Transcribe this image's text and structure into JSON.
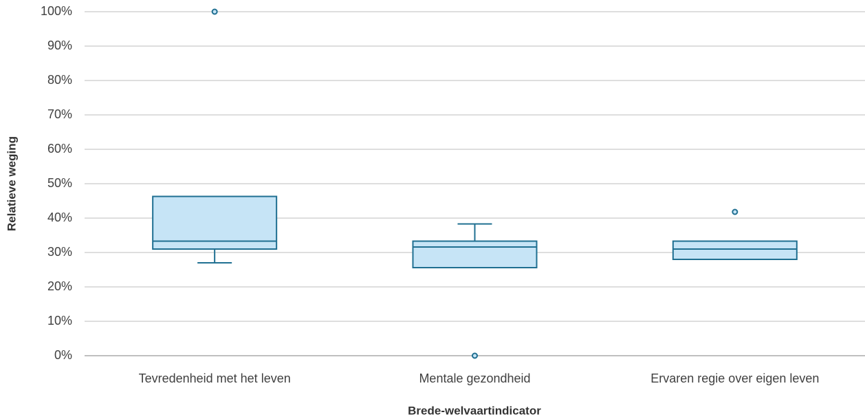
{
  "chart_data": {
    "type": "box",
    "x_label": "Brede-welvaartindicator",
    "y_label": "Relatieve weging",
    "categories": [
      "Tevredenheid met het leven",
      "Mentale gezondheid",
      "Ervaren regie over eigen leven"
    ],
    "min": [
      27,
      25.6,
      28
    ],
    "q1": [
      31,
      25.6,
      28
    ],
    "median": [
      33.3,
      31.6,
      31
    ],
    "q3": [
      46.3,
      33.3,
      33.3
    ],
    "max": [
      46.3,
      38.3,
      33.3
    ],
    "outliers": [
      [
        100
      ],
      [
        0
      ],
      [
        41.8
      ]
    ],
    "color": "#1f6f91",
    "fill_color": "#c6e4f6",
    "ylim": [
      0,
      100
    ],
    "yticks": [
      {
        "value": 0,
        "label": "0%"
      },
      {
        "value": 10,
        "label": "10%"
      },
      {
        "value": 20,
        "label": "20%"
      },
      {
        "value": 30,
        "label": "30%"
      },
      {
        "value": 40,
        "label": "40%"
      },
      {
        "value": 50,
        "label": "50%"
      },
      {
        "value": 60,
        "label": "60%"
      },
      {
        "value": 70,
        "label": "70%"
      },
      {
        "value": 80,
        "label": "80%"
      },
      {
        "value": 90,
        "label": "90%"
      },
      {
        "value": 100,
        "label": "100%"
      }
    ],
    "grid": true
  }
}
